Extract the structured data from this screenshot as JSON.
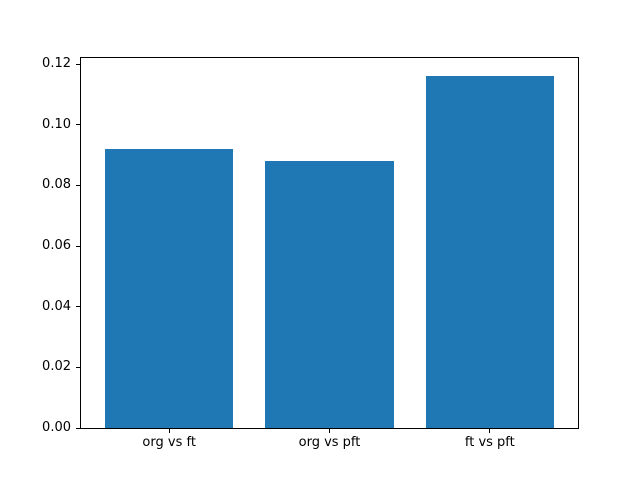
{
  "figure": {
    "background": "#ffffff",
    "axis_color": "#000000"
  },
  "chart_data": {
    "type": "bar",
    "title": "",
    "xlabel": "",
    "ylabel": "",
    "categories": [
      "org vs ft",
      "org vs pft",
      "ft vs pft"
    ],
    "values": [
      0.092,
      0.088,
      0.116
    ],
    "bar_color": "#1f77b4",
    "bar_width": 0.8,
    "xlim": [
      -0.55,
      2.55
    ],
    "ylim": [
      0,
      0.122
    ],
    "yticks": [
      0.0,
      0.02,
      0.04,
      0.06,
      0.08,
      0.1,
      0.12
    ],
    "ytick_labels": [
      "0.00",
      "0.02",
      "0.04",
      "0.06",
      "0.08",
      "0.10",
      "0.12"
    ],
    "grid": false,
    "legend": null
  }
}
